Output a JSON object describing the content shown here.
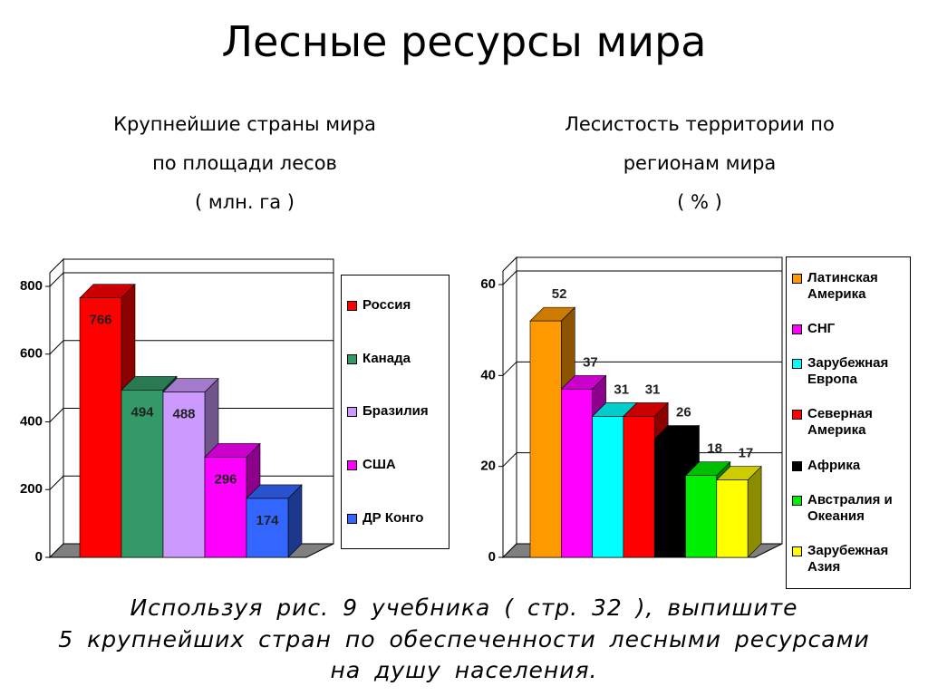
{
  "title": "Лесные ресурсы мира",
  "chart_data": [
    {
      "type": "bar3d",
      "subtitle": [
        "Крупнейшие страны мира",
        "по площади лесов",
        "( млн. га )"
      ],
      "categories": [
        "Россия",
        "Канада",
        "Бразилия",
        "США",
        "ДР Конго"
      ],
      "values": [
        766,
        494,
        488,
        296,
        174
      ],
      "colors": [
        "#ff0000",
        "#339966",
        "#cc99ff",
        "#ff00ff",
        "#3366ff"
      ],
      "ylim": [
        0,
        800
      ],
      "yticks": [
        0,
        200,
        400,
        600,
        800
      ],
      "grid": true,
      "legend": "right"
    },
    {
      "type": "bar3d",
      "subtitle": [
        "Лесистость территории по",
        "регионам мира",
        "( % )"
      ],
      "categories": [
        "Латинская Америка",
        "СНГ",
        "Зарубежная Европа",
        "Северная Америка",
        "Африка",
        "Австралия и Океания",
        "Зарубежная Азия"
      ],
      "values": [
        52,
        37,
        31,
        31,
        26,
        18,
        17
      ],
      "colors": [
        "#ff9900",
        "#ff00ff",
        "#00ffff",
        "#ff0000",
        "#000000",
        "#00ee00",
        "#ffff00"
      ],
      "ylim": [
        0,
        60
      ],
      "yticks": [
        0,
        20,
        40,
        60
      ],
      "grid": true,
      "legend": "right"
    }
  ],
  "task": [
    "Используя рис. 9 учебника ( стр. 32 ), выпишите",
    "5 крупнейших стран по обеспеченности лесными ресурсами",
    "на душу населения."
  ]
}
